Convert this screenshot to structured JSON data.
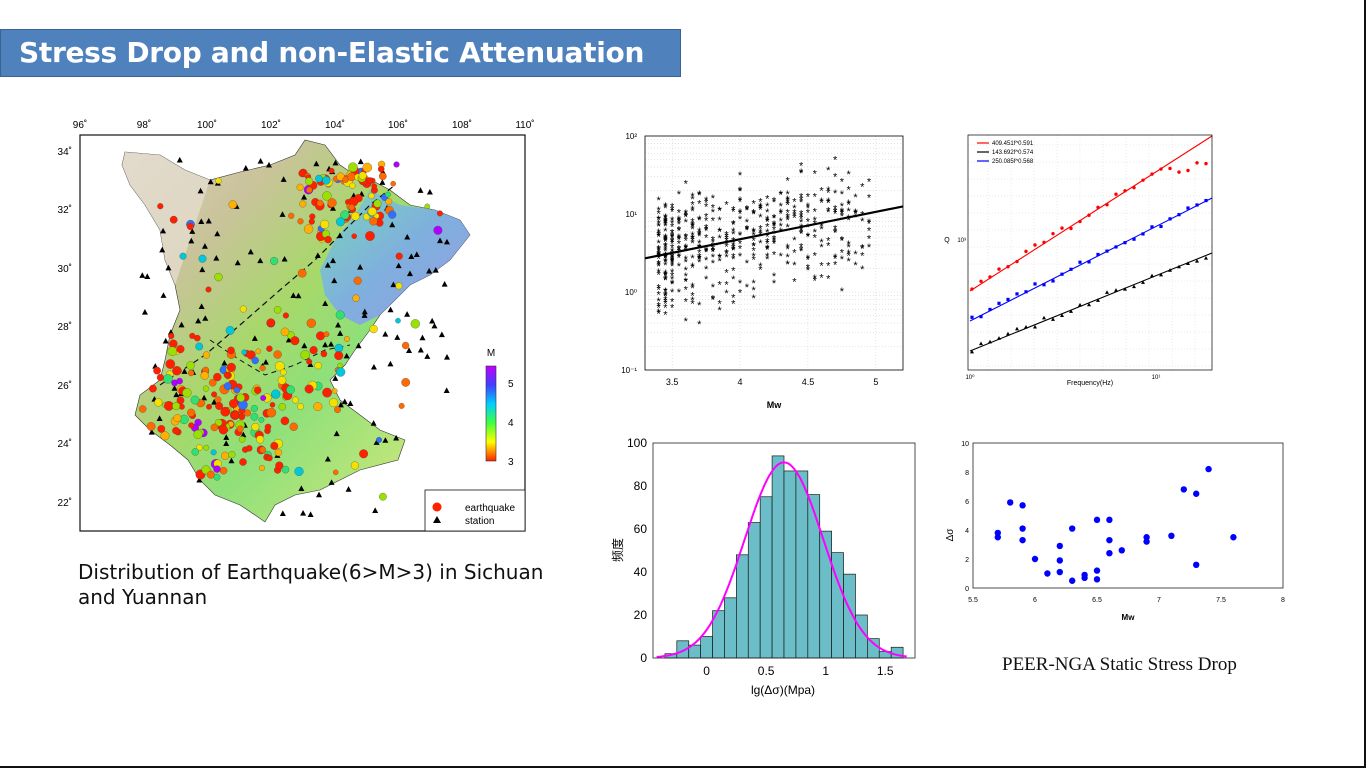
{
  "slide": {
    "title": "Stress Drop and non-Elastic Attenuation",
    "map_caption": "Distribution of Earthquake(6>M>3) in Sichuan and  Yuannan",
    "stress_caption": "PEER-NGA Static Stress Drop"
  },
  "map": {
    "lon_ticks": [
      "96˚",
      "98˚",
      "100˚",
      "102˚",
      "104˚",
      "106˚",
      "108˚",
      "110˚"
    ],
    "lat_ticks": [
      "34˚",
      "32˚",
      "30˚",
      "28˚",
      "26˚",
      "24˚",
      "22˚"
    ],
    "colorbar_title": "M",
    "colorbar_ticks": [
      "5",
      "4",
      "3"
    ],
    "legend": {
      "earthquake": "earthquake",
      "station": "station"
    }
  },
  "chart_data": [
    {
      "type": "scatter",
      "id": "stressdrop-mw",
      "xlabel": "Mw",
      "ylabel": "",
      "xlim": [
        3.3,
        5.2
      ],
      "ylog": true,
      "ylim": [
        0.1,
        100
      ],
      "x_ticks": [
        "3.5",
        "4",
        "4.5",
        "5"
      ],
      "y_ticks": [
        "10²",
        "10¹",
        "10⁰",
        "10⁻¹"
      ],
      "grid": true,
      "marker": "asterisk",
      "fit_line": {
        "x": [
          3.3,
          5.2
        ],
        "y": [
          2.7,
          12.5
        ]
      }
    },
    {
      "type": "scatter",
      "id": "q-frequency",
      "xlabel": "Frequency(Hz)",
      "ylabel": "Q",
      "xlog": true,
      "ylog": true,
      "x_ticks": [
        "10⁰",
        "10¹"
      ],
      "y_ticks": [
        "10³"
      ],
      "grid": true,
      "series": [
        {
          "name": "409.451f^0.591",
          "color": "#ff0000",
          "marker": "circle"
        },
        {
          "name": "143.692f^0.574",
          "color": "#000000",
          "marker": "triangle"
        },
        {
          "name": "250.085f^0.568",
          "color": "#0000ff",
          "marker": "square"
        }
      ]
    },
    {
      "type": "bar",
      "id": "stressdrop-histogram",
      "xlabel": "lg(Δσ)(Mpa)",
      "ylabel": "频度",
      "xlim": [
        -0.45,
        1.75
      ],
      "ylim": [
        0,
        100
      ],
      "x_ticks": [
        "0",
        "0.5",
        "1",
        "1.5"
      ],
      "y_ticks": [
        "0",
        "20",
        "40",
        "60",
        "80",
        "100"
      ],
      "bin_width": 0.1,
      "bin_start": -0.35,
      "values": [
        2,
        8,
        6,
        10,
        22,
        28,
        48,
        63,
        75,
        94,
        87,
        87,
        76,
        59,
        49,
        39,
        20,
        9,
        3,
        5
      ],
      "bar_color": "#6bbdc8",
      "fit_color": "#ff00ff"
    },
    {
      "type": "scatter",
      "id": "peer-nga",
      "xlabel": "Mw",
      "ylabel": "Δσ",
      "xlim": [
        5.5,
        8
      ],
      "ylim": [
        0,
        10
      ],
      "x_ticks": [
        "5.5",
        "6",
        "6.5",
        "7",
        "7.5",
        "8"
      ],
      "y_ticks": [
        "0",
        "2",
        "4",
        "6",
        "8",
        "10"
      ],
      "marker_color": "#0000ff",
      "x": [
        5.7,
        5.7,
        5.8,
        5.9,
        5.9,
        5.9,
        6.0,
        6.1,
        6.2,
        6.2,
        6.2,
        6.3,
        6.3,
        6.4,
        6.4,
        6.5,
        6.5,
        6.5,
        6.6,
        6.6,
        6.6,
        6.7,
        6.9,
        6.9,
        7.1,
        7.2,
        7.3,
        7.3,
        7.4,
        7.6
      ],
      "y": [
        3.8,
        3.5,
        5.9,
        5.7,
        4.1,
        3.3,
        2.0,
        1.0,
        1.9,
        2.9,
        1.1,
        4.1,
        0.5,
        0.7,
        0.9,
        4.7,
        1.2,
        0.6,
        4.7,
        3.3,
        2.4,
        2.6,
        3.5,
        3.2,
        3.6,
        6.8,
        6.5,
        1.6,
        8.2,
        3.5
      ]
    }
  ]
}
